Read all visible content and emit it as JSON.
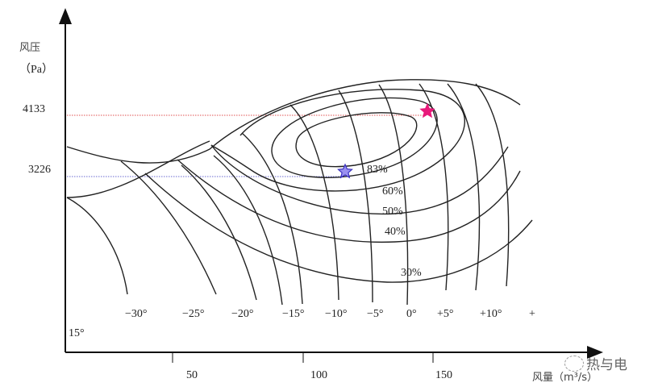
{
  "y_axis": {
    "label": "风压",
    "unit": "（Pa）",
    "marked_values": [
      "4133",
      "3226"
    ]
  },
  "x_axis": {
    "label": "风量（m³/s）",
    "ticks": [
      "50",
      "100",
      "150"
    ]
  },
  "efficiency_labels": [
    "83%",
    "60%",
    "50%",
    "40%",
    "30%"
  ],
  "blade_angles": [
    "−30°",
    "−25°",
    "−20°",
    "−15°",
    "−10°",
    "−5°",
    "0°",
    "+5°",
    "+10°",
    "+"
  ],
  "extra_angle": "15°",
  "markers": [
    {
      "name": "star-pink",
      "color": "#e8197a",
      "pressure": "4133"
    },
    {
      "name": "star-blue",
      "color": "#5a4fe0",
      "pressure": "3226"
    }
  ],
  "guide_colors": {
    "red": "#e05050",
    "blue": "#6a6ad0"
  },
  "watermark": "热与电"
}
